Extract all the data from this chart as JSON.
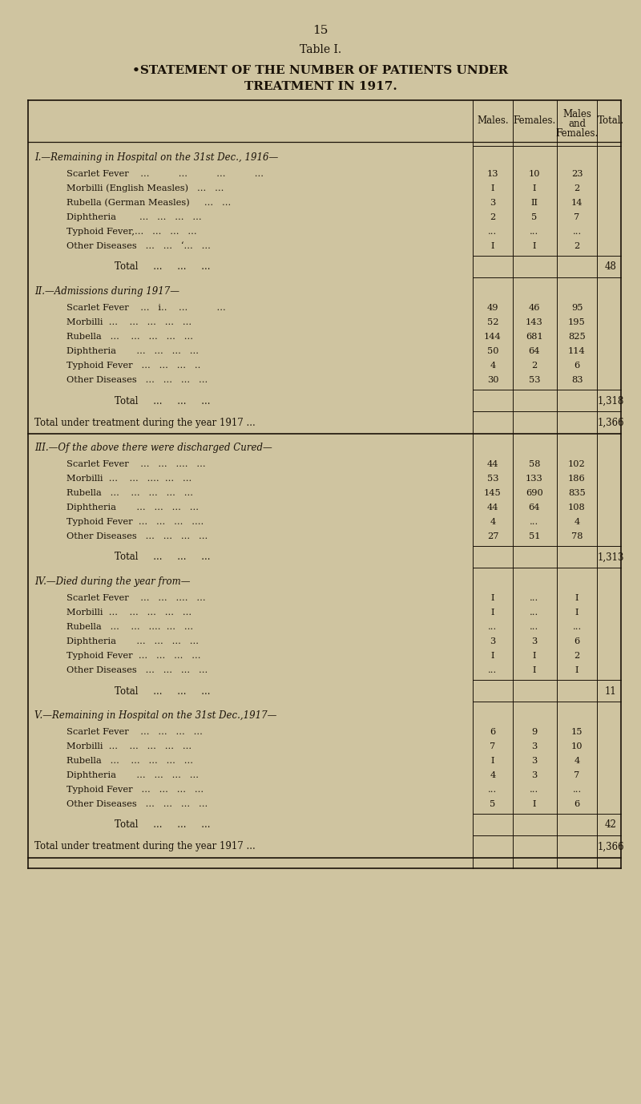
{
  "page_number": "15",
  "table_title": "Table I.",
  "subtitle_line1": "•STATEMENT OF THE NUMBER OF PATIENTS UNDER",
  "subtitle_line2": "TREATMENT IN 1917.",
  "bg_color": "#cfc4a0",
  "text_color": "#1a1208",
  "sections": [
    {
      "heading": "I.—Remaining in Hospital on the 31st Dec., 1916—",
      "rows": [
        {
          "label": "Scarlet Fever    ...          ...          ...          ...",
          "m": "13",
          "f": "10",
          "mf": "23",
          "t": ""
        },
        {
          "label": "Morbilli (English Measles)   ...   ...",
          "m": "I",
          "f": "I",
          "mf": "2",
          "t": ""
        },
        {
          "label": "Rubella (German Measles)     ...   ...",
          "m": "3",
          "f": "II",
          "mf": "14",
          "t": ""
        },
        {
          "label": "Diphtheria        ...   ...   ...   ...",
          "m": "2",
          "f": "5",
          "mf": "7",
          "t": ""
        },
        {
          "label": "Typhoid Fever,...   ...   ...   ...",
          "m": "...",
          "f": "...",
          "mf": "...",
          "t": ""
        },
        {
          "label": "Other Diseases   ...   ...   ‘...   ...",
          "m": "I",
          "f": "I",
          "mf": "2",
          "t": ""
        }
      ],
      "total_label": "Total     ...     ...     ...",
      "total_t": "48",
      "subtotal": null
    },
    {
      "heading": "II.—Admissions during 1917—",
      "rows": [
        {
          "label": "Scarlet Fever    ...   i..    ...          ...",
          "m": "49",
          "f": "46",
          "mf": "95",
          "t": ""
        },
        {
          "label": "Morbilli  ...    ...   ...   ...   ...",
          "m": "52",
          "f": "143",
          "mf": "195",
          "t": ""
        },
        {
          "label": "Rubella   ...    ...   ...   ...   ...",
          "m": "144",
          "f": "681",
          "mf": "825",
          "t": ""
        },
        {
          "label": "Diphtheria       ...   ...   ...   ...",
          "m": "50",
          "f": "64",
          "mf": "114",
          "t": ""
        },
        {
          "label": "Typhoid Fever   ...   ...   ...   ..",
          "m": "4",
          "f": "2",
          "mf": "6",
          "t": ""
        },
        {
          "label": "Other Diseases   ...   ...   ...   ...",
          "m": "30",
          "f": "53",
          "mf": "83",
          "t": ""
        }
      ],
      "total_label": "Total     ...     ...     ...",
      "total_t": "1,318",
      "subtotal": {
        "label": "Total under treatment during the year 1917 ...",
        "t": "1,366"
      }
    },
    {
      "heading": "III.—Of the above there were discharged Cured—",
      "rows": [
        {
          "label": "Scarlet Fever    ...   ...   ....   ...",
          "m": "44",
          "f": "58",
          "mf": "102",
          "t": ""
        },
        {
          "label": "Morbilli  ...    ...   ....  ...   ...",
          "m": "53",
          "f": "133",
          "mf": "186",
          "t": ""
        },
        {
          "label": "Rubella   ...    ...   ...   ...   ...",
          "m": "145",
          "f": "690",
          "mf": "835",
          "t": ""
        },
        {
          "label": "Diphtheria       ...   ...   ...   ...",
          "m": "44",
          "f": "64",
          "mf": "108",
          "t": ""
        },
        {
          "label": "Typhoid Fever  ...   ...   ...   ....",
          "m": "4",
          "f": "...",
          "mf": "4",
          "t": ""
        },
        {
          "label": "Other Diseases   ...   ...   ...   ...",
          "m": "27",
          "f": "51",
          "mf": "78",
          "t": ""
        }
      ],
      "total_label": "Total     ...     ...     ...",
      "total_t": "1,313",
      "subtotal": null
    },
    {
      "heading": "IV.—Died during the year from—",
      "rows": [
        {
          "label": "Scarlet Fever    ...   ...   ....   ...",
          "m": "I",
          "f": "...",
          "mf": "I",
          "t": ""
        },
        {
          "label": "Morbilli  ...    ...   ...   ...   ...",
          "m": "I",
          "f": "...",
          "mf": "I",
          "t": ""
        },
        {
          "label": "Rubella   ...    ...   ....  ...   ...",
          "m": "...",
          "f": "...",
          "mf": "...",
          "t": ""
        },
        {
          "label": "Diphtheria       ...   ...   ...   ...",
          "m": "3",
          "f": "3",
          "mf": "6",
          "t": ""
        },
        {
          "label": "Typhoid Fever  ...   ...   ...   ...",
          "m": "I",
          "f": "I",
          "mf": "2",
          "t": ""
        },
        {
          "label": "Other Diseases   ...   ...   ...   ...",
          "m": "...",
          "f": "I",
          "mf": "I",
          "t": ""
        }
      ],
      "total_label": "Total     ...     ...     ...",
      "total_t": "11",
      "subtotal": null
    },
    {
      "heading": "V.—Remaining in Hospital on the 31st Dec.,1917—",
      "rows": [
        {
          "label": "Scarlet Fever    ...   ...   ...   ...",
          "m": "6",
          "f": "9",
          "mf": "15",
          "t": ""
        },
        {
          "label": "Morbilli  ...    ...   ...   ...   ...",
          "m": "7",
          "f": "3",
          "mf": "10",
          "t": ""
        },
        {
          "label": "Rubella   ...    ...   ...   ...   ...",
          "m": "I",
          "f": "3",
          "mf": "4",
          "t": ""
        },
        {
          "label": "Diphtheria       ...   ...   ...   ...",
          "m": "4",
          "f": "3",
          "mf": "7",
          "t": ""
        },
        {
          "label": "Typhoid Fever   ...   ...   ...   ...",
          "m": "...",
          "f": "...",
          "mf": "...",
          "t": ""
        },
        {
          "label": "Other Diseases   ...   ...   ...   ...",
          "m": "5",
          "f": "I",
          "mf": "6",
          "t": ""
        }
      ],
      "total_label": "Total     ...     ...     ...",
      "total_t": "42",
      "subtotal": {
        "label": "Total under treatment during the year 1917 ...",
        "t": "1,366"
      }
    }
  ]
}
